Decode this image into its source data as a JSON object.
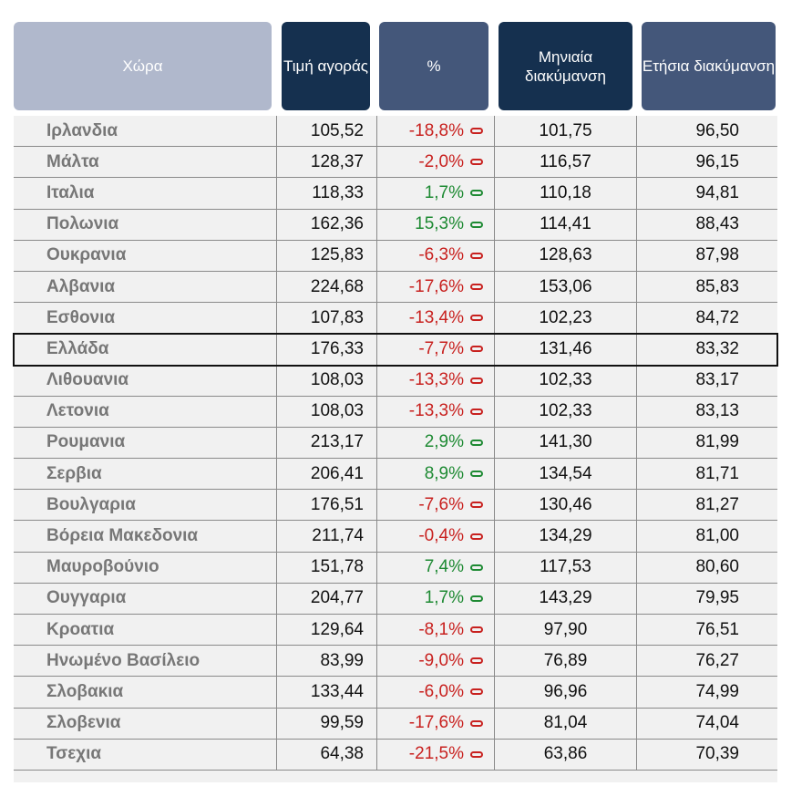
{
  "colors": {
    "header_light": "#b0b8cc",
    "header_dark": "#15304f",
    "header_mid": "#44577a",
    "negative": "#c8211f",
    "positive": "#1e8a33"
  },
  "headers": [
    "Χώρα",
    "Τιμή αγοράς",
    "%",
    "Μηνιαία διακύμανση",
    "Ετήσια διακύμανση"
  ],
  "highlighted_row": "Ελλάδα",
  "rows": [
    [
      "Ιρλανδια",
      "105,52",
      "-18,8%",
      "101,75",
      "96,50"
    ],
    [
      "Μάλτα",
      "128,37",
      "-2,0%",
      "116,57",
      "96,15"
    ],
    [
      "Ιταλια",
      "118,33",
      "1,7%",
      "110,18",
      "94,81"
    ],
    [
      "Πολωνια",
      "162,36",
      "15,3%",
      "114,41",
      "88,43"
    ],
    [
      "Ουκρανια",
      "125,83",
      "-6,3%",
      "128,63",
      "87,98"
    ],
    [
      "Αλβανια",
      "224,68",
      "-17,6%",
      "153,06",
      "85,83"
    ],
    [
      "Εσθονια",
      "107,83",
      "-13,4%",
      "102,23",
      "84,72"
    ],
    [
      "Ελλάδα",
      "176,33",
      "-7,7%",
      "131,46",
      "83,32"
    ],
    [
      "Λιθουανια",
      "108,03",
      "-13,3%",
      "102,33",
      "83,17"
    ],
    [
      "Λετονια",
      "108,03",
      "-13,3%",
      "102,33",
      "83,13"
    ],
    [
      "Ρουμανια",
      "213,17",
      "2,9%",
      "141,30",
      "81,99"
    ],
    [
      "Σερβια",
      "206,41",
      "8,9%",
      "134,54",
      "81,71"
    ],
    [
      "Βουλγαρια",
      "176,51",
      "-7,6%",
      "130,46",
      "81,27"
    ],
    [
      "Βόρεια Μακεδονια",
      "211,74",
      "-0,4%",
      "134,29",
      "81,00"
    ],
    [
      "Μαυροβούνιο",
      "151,78",
      "7,4%",
      "117,53",
      "80,60"
    ],
    [
      "Ουγγαρια",
      "204,77",
      "1,7%",
      "143,29",
      "79,95"
    ],
    [
      "Κροατια",
      "129,64",
      "-8,1%",
      "97,90",
      "76,51"
    ],
    [
      "Ηνωμένο Βασίλειο",
      "83,99",
      "-9,0%",
      "76,89",
      "76,27"
    ],
    [
      "Σλοβακια",
      "133,44",
      "-6,0%",
      "96,96",
      "74,99"
    ],
    [
      "Σλοβενια",
      "99,59",
      "-17,6%",
      "81,04",
      "74,04"
    ],
    [
      "Τσεχια",
      "64,38",
      "-21,5%",
      "63,86",
      "70,39"
    ]
  ]
}
